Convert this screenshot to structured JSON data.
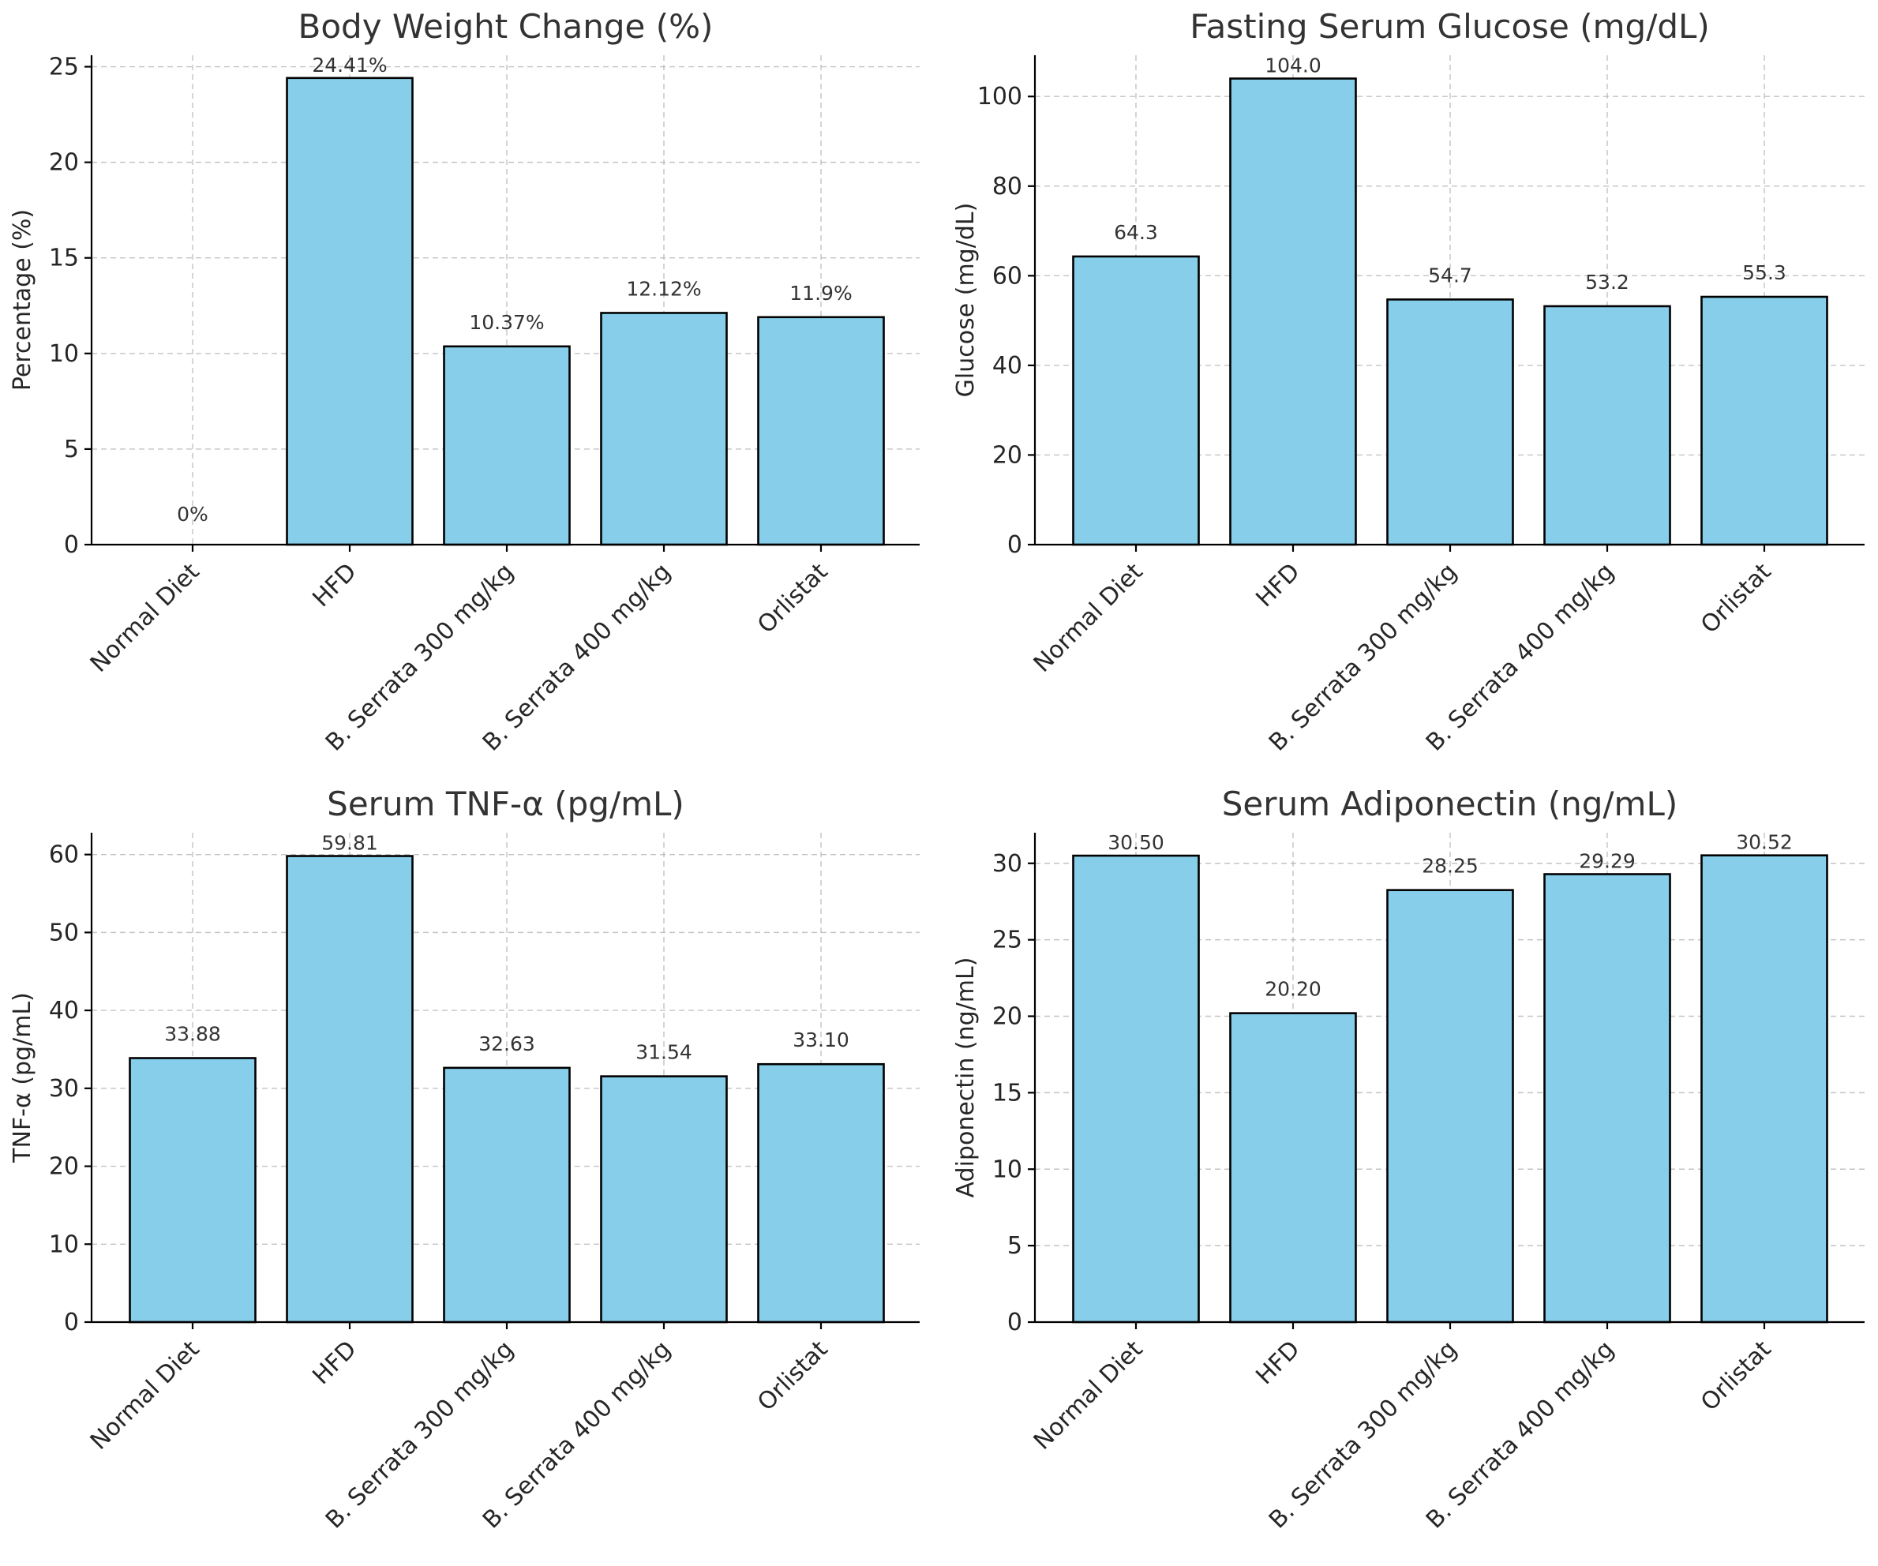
{
  "chart_data": [
    {
      "type": "bar",
      "title": "Body Weight Change (%)",
      "ylabel": "Percentage (%)",
      "xlabel": "",
      "categories": [
        "Normal Diet",
        "HFD",
        "B. Serrata 300 mg/kg",
        "B. Serrata 400 mg/kg",
        "Orlistat"
      ],
      "values": [
        0,
        24.41,
        10.37,
        12.12,
        11.9
      ],
      "value_labels": [
        "0%",
        "24.41%",
        "10.37%",
        "12.12%",
        "11.9%"
      ],
      "ylim": [
        0,
        25.6
      ],
      "yticks": [
        0,
        5,
        10,
        15,
        20,
        25
      ],
      "grid": true,
      "bar_color": "#87ceeb"
    },
    {
      "type": "bar",
      "title": "Fasting Serum Glucose (mg/dL)",
      "ylabel": "Glucose (mg/dL)",
      "xlabel": "",
      "categories": [
        "Normal Diet",
        "HFD",
        "B. Serrata 300 mg/kg",
        "B. Serrata 400 mg/kg",
        "Orlistat"
      ],
      "values": [
        64.3,
        104.0,
        54.7,
        53.2,
        55.3
      ],
      "value_labels": [
        "64.3",
        "104.0",
        "54.7",
        "53.2",
        "55.3"
      ],
      "ylim": [
        0,
        109.2
      ],
      "yticks": [
        0,
        20,
        40,
        60,
        80,
        100
      ],
      "grid": true,
      "bar_color": "#87ceeb"
    },
    {
      "type": "bar",
      "title": "Serum TNF-α (pg/mL)",
      "ylabel": "TNF-α (pg/mL)",
      "xlabel": "",
      "categories": [
        "Normal Diet",
        "HFD",
        "B. Serrata 300 mg/kg",
        "B. Serrata 400 mg/kg",
        "Orlistat"
      ],
      "values": [
        33.88,
        59.81,
        32.63,
        31.54,
        33.1
      ],
      "value_labels": [
        "33.88",
        "59.81",
        "32.63",
        "31.54",
        "33.10"
      ],
      "ylim": [
        0,
        62.8
      ],
      "yticks": [
        0,
        10,
        20,
        30,
        40,
        50,
        60
      ],
      "grid": true,
      "bar_color": "#87ceeb"
    },
    {
      "type": "bar",
      "title": "Serum Adiponectin (ng/mL)",
      "ylabel": "Adiponectin (ng/mL)",
      "xlabel": "",
      "categories": [
        "Normal Diet",
        "HFD",
        "B. Serrata 300 mg/kg",
        "B. Serrata 400 mg/kg",
        "Orlistat"
      ],
      "values": [
        30.5,
        20.2,
        28.25,
        29.29,
        30.52
      ],
      "value_labels": [
        "30.50",
        "20.20",
        "28.25",
        "29.29",
        "30.52"
      ],
      "ylim": [
        0,
        32.0
      ],
      "yticks": [
        0,
        5,
        10,
        15,
        20,
        25,
        30
      ],
      "grid": true,
      "bar_color": "#87ceeb"
    }
  ]
}
